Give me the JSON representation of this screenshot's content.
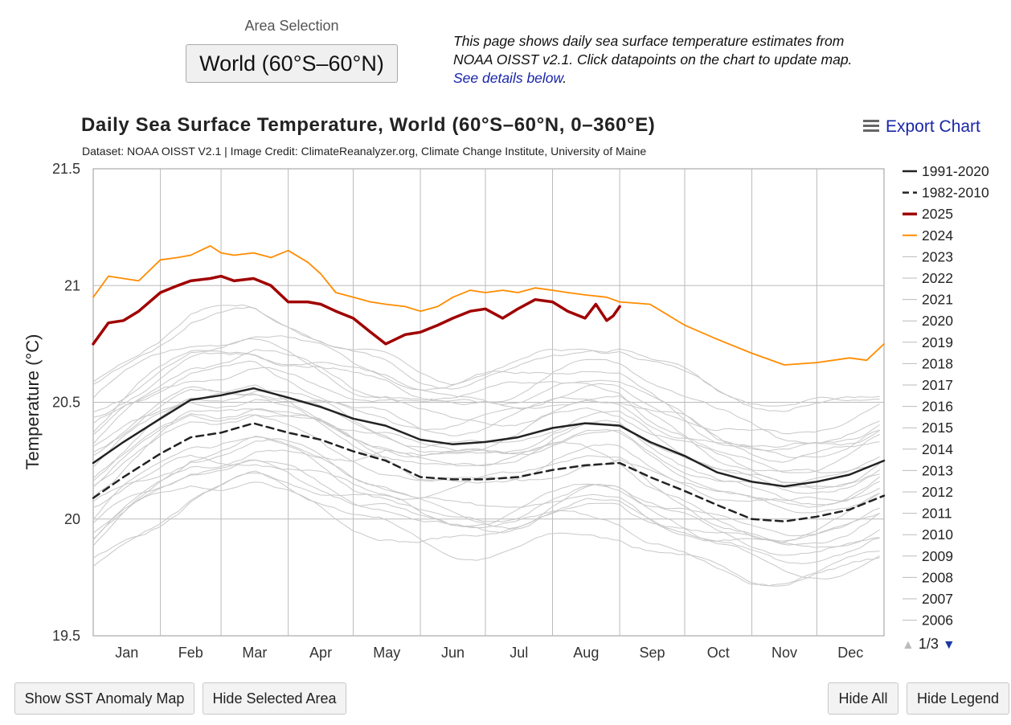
{
  "area": {
    "label": "Area Selection",
    "selected": "World (60°S–60°N)"
  },
  "intro": {
    "text": "This page shows daily sea surface temperature estimates from NOAA OISST v2.1. Click datapoints on the chart to update map.",
    "link": "See details below",
    "end": "."
  },
  "export_label": "Export Chart",
  "legend_page": "1/3",
  "buttons": {
    "anomaly": "Show SST Anomaly Map",
    "hide_area": "Hide Selected Area",
    "hide_all": "Hide All",
    "hide_legend": "Hide Legend"
  },
  "chart_data": {
    "type": "line",
    "title": "Daily Sea Surface Temperature, World (60°S–60°N, 0–360°E)",
    "subtitle": "Dataset: NOAA OISST V2.1 | Image Credit: ClimateReanalyzer.org, Climate Change Institute, University of Maine",
    "ylabel": "Temperature (°C)",
    "xlabel": "",
    "ylim": [
      19.5,
      21.5
    ],
    "yticks": [
      19.5,
      20,
      20.5,
      21,
      21.5
    ],
    "x_unit": "day of year",
    "xlim": [
      1,
      366
    ],
    "months": [
      "Jan",
      "Feb",
      "Mar",
      "Apr",
      "May",
      "Jun",
      "Jul",
      "Aug",
      "Sep",
      "Oct",
      "Nov",
      "Dec"
    ],
    "grid": true,
    "legend_position": "right",
    "series": [
      {
        "name": "1991-2020",
        "color": "#222222",
        "style": "solid",
        "width": 2.5,
        "x": [
          1,
          15,
          32,
          46,
          60,
          75,
          91,
          106,
          121,
          136,
          152,
          167,
          182,
          197,
          213,
          228,
          244,
          258,
          274,
          289,
          305,
          320,
          335,
          350,
          366
        ],
        "y": [
          20.24,
          20.33,
          20.43,
          20.51,
          20.53,
          20.56,
          20.52,
          20.48,
          20.43,
          20.4,
          20.34,
          20.32,
          20.33,
          20.35,
          20.39,
          20.41,
          20.4,
          20.33,
          20.27,
          20.2,
          20.16,
          20.14,
          20.16,
          20.19,
          20.25
        ]
      },
      {
        "name": "1982-2010",
        "color": "#222222",
        "style": "dashed",
        "width": 2.5,
        "x": [
          1,
          15,
          32,
          46,
          60,
          75,
          91,
          106,
          121,
          136,
          152,
          167,
          182,
          197,
          213,
          228,
          244,
          258,
          274,
          289,
          305,
          320,
          335,
          350,
          366
        ],
        "y": [
          20.09,
          20.18,
          20.28,
          20.35,
          20.37,
          20.41,
          20.37,
          20.34,
          20.29,
          20.25,
          20.18,
          20.17,
          20.17,
          20.18,
          20.21,
          20.23,
          20.24,
          20.18,
          20.12,
          20.06,
          20.0,
          19.99,
          20.01,
          20.04,
          20.1
        ]
      },
      {
        "name": "2025",
        "color": "#a00000",
        "style": "solid",
        "width": 3.5,
        "x": [
          1,
          8,
          15,
          22,
          32,
          40,
          46,
          55,
          60,
          66,
          75,
          83,
          91,
          100,
          106,
          113,
          121,
          129,
          136,
          145,
          152,
          160,
          167,
          175,
          182,
          190,
          197,
          205,
          213,
          220,
          228,
          233,
          238,
          241,
          244
        ],
        "y": [
          20.75,
          20.84,
          20.85,
          20.89,
          20.97,
          21.0,
          21.02,
          21.03,
          21.04,
          21.02,
          21.03,
          21.0,
          20.93,
          20.93,
          20.92,
          20.89,
          20.86,
          20.8,
          20.75,
          20.79,
          20.8,
          20.83,
          20.86,
          20.89,
          20.9,
          20.86,
          20.9,
          20.94,
          20.93,
          20.89,
          20.86,
          20.92,
          20.85,
          20.87,
          20.91
        ]
      },
      {
        "name": "2024",
        "color": "#ff8c00",
        "style": "solid",
        "width": 1.8,
        "x": [
          1,
          8,
          15,
          22,
          32,
          40,
          46,
          55,
          60,
          66,
          75,
          83,
          91,
          100,
          106,
          113,
          121,
          129,
          136,
          145,
          152,
          160,
          167,
          175,
          182,
          190,
          197,
          205,
          213,
          220,
          228,
          238,
          244,
          258,
          274,
          289,
          305,
          320,
          335,
          350,
          358,
          366
        ],
        "y": [
          20.95,
          21.04,
          21.03,
          21.02,
          21.11,
          21.12,
          21.13,
          21.17,
          21.14,
          21.13,
          21.14,
          21.12,
          21.15,
          21.1,
          21.05,
          20.97,
          20.95,
          20.93,
          20.92,
          20.91,
          20.89,
          20.91,
          20.95,
          20.98,
          20.97,
          20.98,
          20.97,
          20.99,
          20.98,
          20.97,
          20.96,
          20.95,
          20.93,
          20.92,
          20.83,
          20.77,
          20.71,
          20.66,
          20.67,
          20.69,
          20.68,
          20.75
        ]
      }
    ],
    "background_series_shown_in_legend": [
      "2023",
      "2022",
      "2021",
      "2020",
      "2019",
      "2018",
      "2017",
      "2016",
      "2015",
      "2014",
      "2013",
      "2012",
      "2011",
      "2010",
      "2009",
      "2008",
      "2007",
      "2006"
    ],
    "background_color": "#c8c8c8"
  }
}
